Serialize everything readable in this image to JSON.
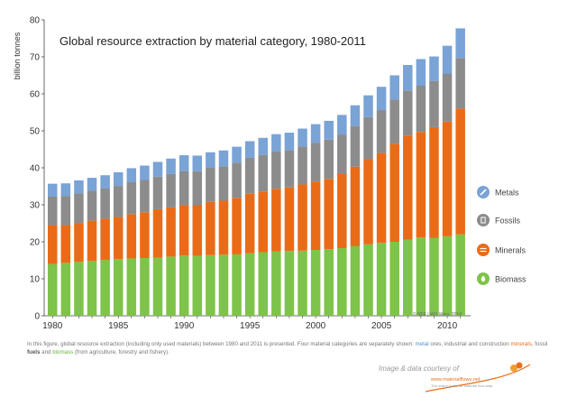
{
  "chart_data": {
    "type": "stacked-bar",
    "title": "Global resource extraction by material category, 1980-2011",
    "ylabel": "billion tonnes",
    "xlabel": "",
    "ylim": [
      0,
      80
    ],
    "yticks": [
      0,
      10,
      20,
      30,
      40,
      50,
      60,
      70,
      80
    ],
    "xtick_labels": [
      "1980",
      "1985",
      "1990",
      "1995",
      "2000",
      "2005",
      "2010"
    ],
    "grid": false,
    "legend_position": "right",
    "categories": [
      "1980",
      "1981",
      "1982",
      "1983",
      "1984",
      "1985",
      "1986",
      "1987",
      "1988",
      "1989",
      "1990",
      "1991",
      "1992",
      "1993",
      "1994",
      "1995",
      "1996",
      "1997",
      "1998",
      "1999",
      "2000",
      "2001",
      "2002",
      "2003",
      "2004",
      "2005",
      "2006",
      "2007",
      "2008",
      "2009",
      "2010",
      "2011"
    ],
    "series": [
      {
        "name": "Biomass",
        "color": "#7ec34a",
        "values": [
          14.0,
          14.3,
          14.6,
          14.8,
          15.1,
          15.3,
          15.5,
          15.6,
          15.7,
          16.0,
          16.3,
          16.2,
          16.4,
          16.5,
          16.6,
          16.9,
          17.2,
          17.4,
          17.5,
          17.6,
          17.8,
          18.0,
          18.3,
          18.8,
          19.3,
          19.7,
          20.0,
          20.6,
          21.2,
          21.0,
          21.5,
          22.0
        ]
      },
      {
        "name": "Minerals",
        "color": "#ea6b17",
        "values": [
          10.5,
          10.2,
          10.5,
          10.9,
          11.1,
          11.4,
          12.0,
          12.4,
          13.1,
          13.3,
          13.6,
          13.8,
          14.4,
          14.6,
          15.3,
          16.1,
          16.4,
          16.9,
          17.2,
          17.9,
          18.5,
          19.0,
          20.0,
          21.5,
          23.0,
          24.3,
          26.5,
          28.1,
          28.5,
          30.0,
          31.0,
          34.0
        ]
      },
      {
        "name": "Fossils",
        "color": "#8c8c8c",
        "values": [
          7.7,
          7.9,
          8.0,
          8.1,
          8.2,
          8.4,
          8.6,
          8.7,
          8.8,
          9.0,
          9.2,
          9.1,
          9.2,
          9.3,
          9.5,
          9.7,
          9.9,
          10.1,
          10.1,
          10.3,
          10.5,
          10.6,
          10.7,
          11.0,
          11.4,
          11.6,
          11.9,
          12.2,
          12.5,
          12.5,
          13.0,
          13.7
        ]
      },
      {
        "name": "Metals",
        "color": "#7aa3d6",
        "values": [
          3.5,
          3.4,
          3.5,
          3.5,
          3.6,
          3.7,
          3.8,
          3.9,
          4.0,
          4.2,
          4.3,
          4.2,
          4.2,
          4.3,
          4.3,
          4.5,
          4.6,
          4.7,
          4.7,
          4.8,
          5.0,
          5.1,
          5.3,
          5.6,
          5.9,
          6.3,
          6.6,
          6.9,
          7.2,
          6.6,
          7.5,
          8.0
        ]
      }
    ],
    "legend": [
      "Metals",
      "Fossils",
      "Minerals",
      "Biomass"
    ],
    "source_note": "© SEE | WU Wien, 2014"
  },
  "caption": {
    "part1": "In this figure, global resource extraction (including only used materials) between 1980 and 2011 is presented. Four material categories are separately shown: ",
    "metals": "metal",
    "part2": " ores, industrial and construction ",
    "minerals": "minerals",
    "part3": ", fossil ",
    "fossils": "fuels",
    "part4": " and ",
    "biomass": "biomass",
    "part5": " (from agriculture, forestry and fishery)."
  },
  "credit": {
    "courtesy": "Image & data courtesy of",
    "url": "www.materialflows.net",
    "tagline": "The online portal for material flow data"
  }
}
